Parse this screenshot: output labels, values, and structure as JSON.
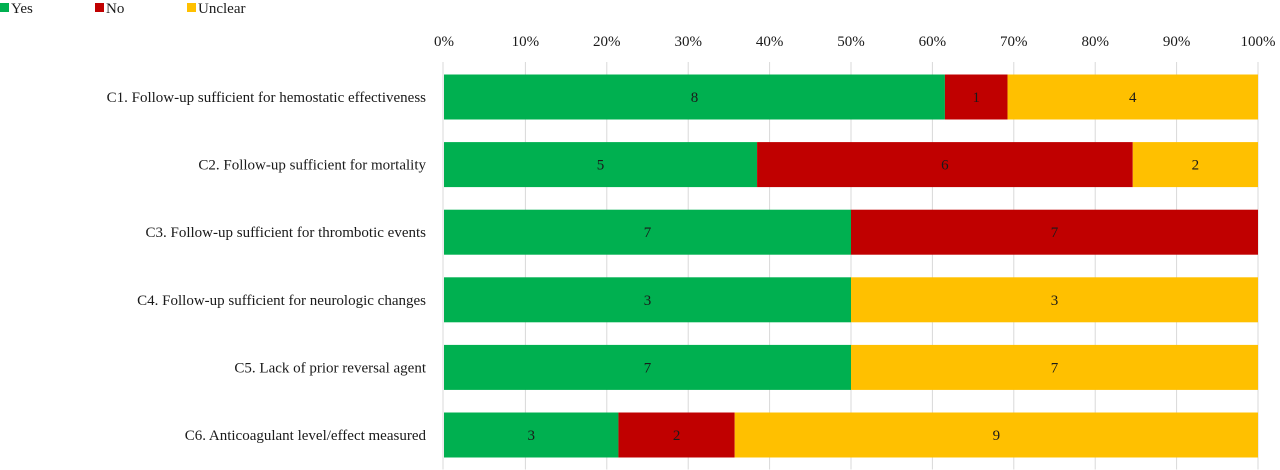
{
  "chart_data": {
    "type": "bar",
    "orientation": "horizontal",
    "stacked": true,
    "normalized": true,
    "categories": [
      "C1. Follow-up sufficient for hemostatic effectiveness",
      "C2. Follow-up sufficient for mortality",
      "C3. Follow-up sufficient for thrombotic events",
      "C4. Follow-up sufficient for neurologic changes",
      "C5. Lack of prior reversal agent",
      "C6. Anticoagulant level/effect measured"
    ],
    "series": [
      {
        "name": "Yes",
        "color": "#00b050",
        "values": [
          8,
          5,
          7,
          3,
          7,
          3
        ]
      },
      {
        "name": "No",
        "color": "#c00000",
        "values": [
          1,
          6,
          7,
          0,
          0,
          2
        ]
      },
      {
        "name": "Unclear",
        "color": "#ffc000",
        "values": [
          4,
          2,
          0,
          3,
          7,
          9
        ]
      }
    ],
    "x_ticks": [
      "0%",
      "10%",
      "20%",
      "30%",
      "40%",
      "50%",
      "60%",
      "70%",
      "80%",
      "90%",
      "100%"
    ],
    "xlim": [
      0,
      100
    ],
    "grid": true,
    "legend_position": "top-left"
  }
}
